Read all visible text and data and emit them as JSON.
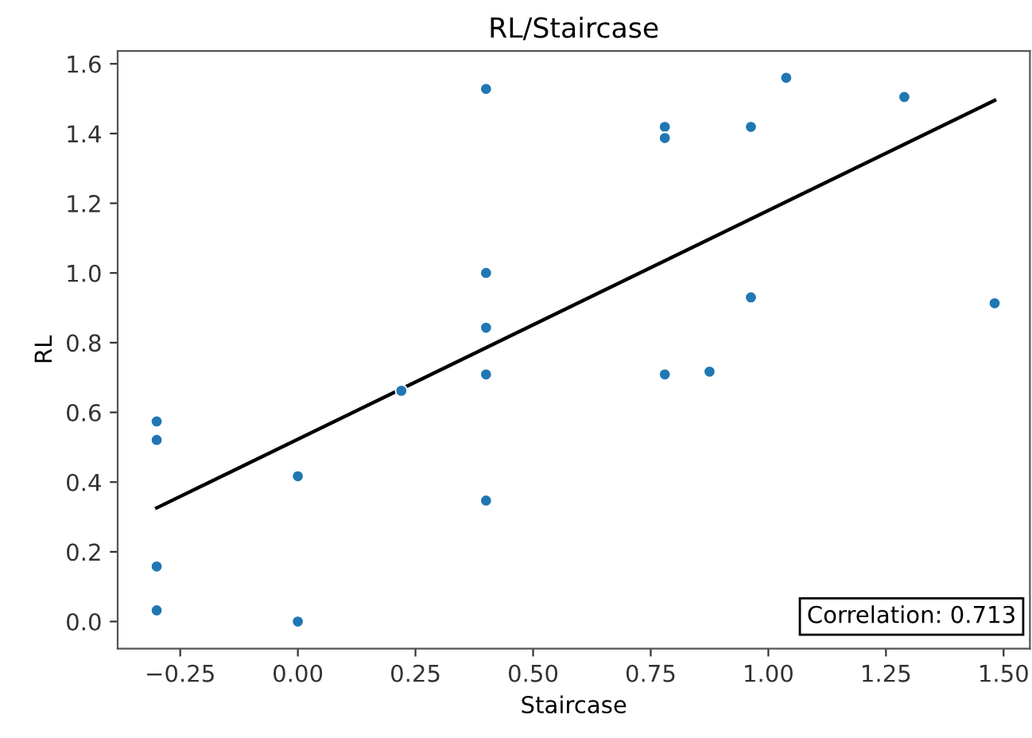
{
  "chart_data": {
    "type": "scatter",
    "title": "RL/Staircase",
    "xlabel": "Staircase",
    "ylabel": "RL",
    "series": [
      {
        "color": "#1f77b4",
        "marker": "circle",
        "x": [
          -0.3,
          -0.3,
          -0.3,
          -0.3,
          0.0,
          0.0,
          0.22,
          0.4,
          0.4,
          0.4,
          0.4,
          0.4,
          0.78,
          0.78,
          0.78,
          0.875,
          0.963,
          0.963,
          1.038,
          1.289,
          1.481
        ],
        "values": [
          0.574,
          0.521,
          0.158,
          0.032,
          0.417,
          0.0,
          0.662,
          1.528,
          1.0,
          0.843,
          0.709,
          0.347,
          1.419,
          1.387,
          0.709,
          0.717,
          1.419,
          0.93,
          1.56,
          1.505,
          0.913
        ]
      },
      {
        "type": "line",
        "color": "#000000",
        "marker": "none",
        "line_style": "solid",
        "x": [
          -0.3,
          1.481
        ],
        "values": [
          0.326,
          1.495
        ]
      }
    ],
    "annotations": [
      "Correlation: 0.713"
    ],
    "xlim": [
      -0.383,
      1.556
    ],
    "ylim": [
      -0.078,
      1.637
    ],
    "xticks": [
      {
        "value": -0.25,
        "label": "−0.25"
      },
      {
        "value": 0.0,
        "label": "0.00"
      },
      {
        "value": 0.25,
        "label": "0.25"
      },
      {
        "value": 0.5,
        "label": "0.50"
      },
      {
        "value": 0.75,
        "label": "0.75"
      },
      {
        "value": 1.0,
        "label": "1.00"
      },
      {
        "value": 1.25,
        "label": "1.25"
      },
      {
        "value": 1.5,
        "label": "1.50"
      }
    ],
    "yticks": [
      {
        "value": 0.0,
        "label": "0.0"
      },
      {
        "value": 0.2,
        "label": "0.2"
      },
      {
        "value": 0.4,
        "label": "0.4"
      },
      {
        "value": 0.6,
        "label": "0.6"
      },
      {
        "value": 0.8,
        "label": "0.8"
      },
      {
        "value": 1.0,
        "label": "1.0"
      },
      {
        "value": 1.2,
        "label": "1.2"
      },
      {
        "value": 1.4,
        "label": "1.4"
      },
      {
        "value": 1.6,
        "label": "1.6"
      }
    ],
    "grid": false
  }
}
